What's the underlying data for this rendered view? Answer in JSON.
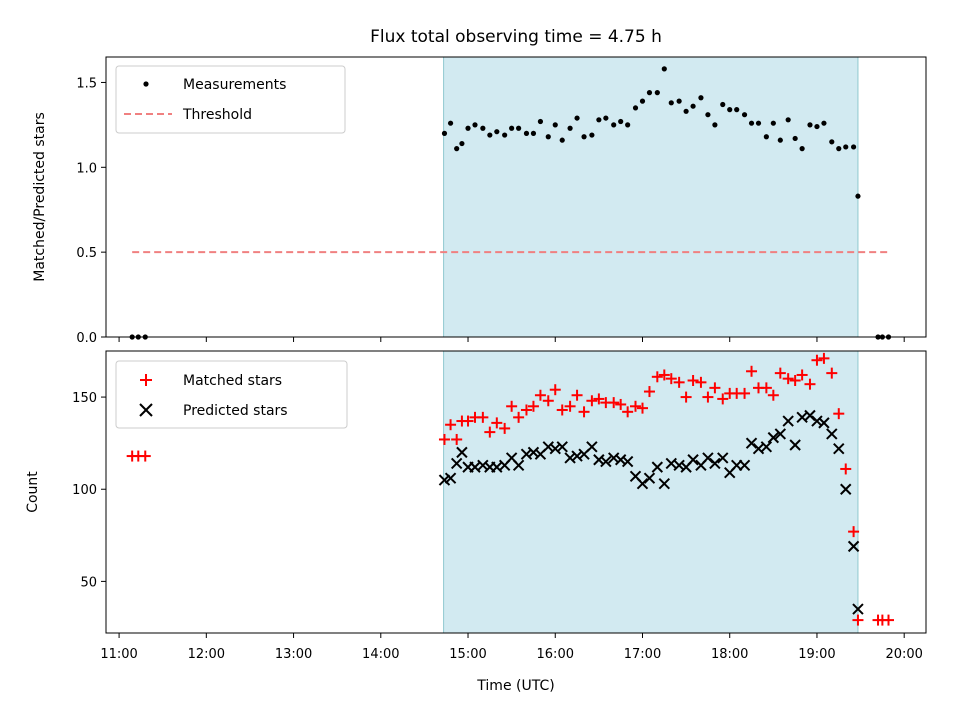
{
  "chart_data": {
    "title": "Flux total observing time = 4.75 h",
    "type": "scatter",
    "xlabel": "Time (UTC)",
    "x_ticks": [
      "11:00",
      "12:00",
      "13:00",
      "14:00",
      "15:00",
      "16:00",
      "17:00",
      "18:00",
      "19:00",
      "20:00"
    ],
    "x_range_hours": [
      10.85,
      20.25
    ],
    "observing_window_hours": [
      14.72,
      19.47
    ],
    "colors": {
      "window": "#add8e6",
      "measurements": "#000000",
      "threshold": "#f08080",
      "matched": "#ff0000",
      "predicted": "#000000"
    },
    "panels": [
      {
        "ylabel": "Matched/Predicted stars",
        "ylim": [
          0,
          1.65
        ],
        "y_ticks": [
          "0.0",
          "0.5",
          "1.0",
          "1.5"
        ],
        "legend_position": "top-left",
        "series": [
          {
            "name": "Measurements",
            "marker": "dot",
            "x": [
              11.15,
              11.22,
              11.3,
              14.73,
              14.8,
              14.87,
              14.93,
              15.0,
              15.08,
              15.17,
              15.25,
              15.33,
              15.42,
              15.5,
              15.58,
              15.67,
              15.75,
              15.83,
              15.92,
              16.0,
              16.08,
              16.17,
              16.25,
              16.33,
              16.42,
              16.5,
              16.58,
              16.67,
              16.75,
              16.83,
              16.92,
              17.0,
              17.08,
              17.17,
              17.25,
              17.33,
              17.42,
              17.5,
              17.58,
              17.67,
              17.75,
              17.83,
              17.92,
              18.0,
              18.08,
              18.17,
              18.25,
              18.33,
              18.42,
              18.5,
              18.58,
              18.67,
              18.75,
              18.83,
              18.92,
              19.0,
              19.08,
              19.17,
              19.25,
              19.33,
              19.42,
              19.47,
              19.7,
              19.75,
              19.82
            ],
            "y": [
              0,
              0,
              0,
              1.2,
              1.26,
              1.11,
              1.14,
              1.23,
              1.25,
              1.23,
              1.19,
              1.21,
              1.19,
              1.23,
              1.23,
              1.2,
              1.2,
              1.27,
              1.18,
              1.25,
              1.16,
              1.23,
              1.29,
              1.18,
              1.19,
              1.28,
              1.29,
              1.25,
              1.27,
              1.25,
              1.35,
              1.39,
              1.44,
              1.44,
              1.58,
              1.38,
              1.39,
              1.33,
              1.36,
              1.41,
              1.31,
              1.25,
              1.37,
              1.34,
              1.34,
              1.31,
              1.26,
              1.26,
              1.18,
              1.26,
              1.16,
              1.28,
              1.17,
              1.11,
              1.25,
              1.24,
              1.26,
              1.15,
              1.11,
              1.12,
              1.12,
              0.83,
              0,
              0,
              0
            ]
          },
          {
            "name": "Threshold",
            "marker": "dashed-line",
            "x": [
              11.15,
              19.82
            ],
            "y": [
              0.5,
              0.5
            ]
          }
        ]
      },
      {
        "ylabel": "Count",
        "ylim": [
          22,
          175
        ],
        "y_ticks": [
          "50",
          "100",
          "150"
        ],
        "legend_position": "top-left",
        "series": [
          {
            "name": "Matched stars",
            "marker": "plus",
            "x": [
              11.15,
              11.22,
              11.3,
              14.73,
              14.8,
              14.87,
              14.93,
              15.0,
              15.08,
              15.17,
              15.25,
              15.33,
              15.42,
              15.5,
              15.58,
              15.67,
              15.75,
              15.83,
              15.92,
              16.0,
              16.08,
              16.17,
              16.25,
              16.33,
              16.42,
              16.5,
              16.58,
              16.67,
              16.75,
              16.83,
              16.92,
              17.0,
              17.08,
              17.17,
              17.25,
              17.33,
              17.42,
              17.5,
              17.58,
              17.67,
              17.75,
              17.83,
              17.92,
              18.0,
              18.08,
              18.17,
              18.25,
              18.33,
              18.42,
              18.5,
              18.58,
              18.67,
              18.75,
              18.83,
              18.92,
              19.0,
              19.08,
              19.17,
              19.25,
              19.33,
              19.42,
              19.47,
              19.7,
              19.75,
              19.82
            ],
            "y": [
              118,
              118,
              118,
              127,
              135,
              127,
              137,
              137,
              139,
              139,
              131,
              136,
              133,
              145,
              139,
              143,
              145,
              151,
              148,
              154,
              143,
              145,
              151,
              142,
              148,
              149,
              147,
              147,
              146,
              142,
              145,
              144,
              153,
              161,
              162,
              160,
              158,
              150,
              159,
              158,
              150,
              155,
              149,
              152,
              152,
              152,
              164,
              155,
              155,
              151,
              163,
              160,
              159,
              162,
              157,
              170,
              171,
              163,
              141,
              111,
              77,
              29,
              29,
              29,
              29
            ]
          },
          {
            "name": "Predicted stars",
            "marker": "x",
            "x": [
              14.73,
              14.8,
              14.87,
              14.93,
              15.0,
              15.08,
              15.17,
              15.25,
              15.33,
              15.42,
              15.5,
              15.58,
              15.67,
              15.75,
              15.83,
              15.92,
              16.0,
              16.08,
              16.17,
              16.25,
              16.33,
              16.42,
              16.5,
              16.58,
              16.67,
              16.75,
              16.83,
              16.92,
              17.0,
              17.08,
              17.17,
              17.25,
              17.33,
              17.42,
              17.5,
              17.58,
              17.67,
              17.75,
              17.83,
              17.92,
              18.0,
              18.08,
              18.17,
              18.25,
              18.33,
              18.42,
              18.5,
              18.58,
              18.67,
              18.75,
              18.83,
              18.92,
              19.0,
              19.08,
              19.17,
              19.25,
              19.33,
              19.42,
              19.47
            ],
            "y": [
              105,
              106,
              114,
              120,
              112,
              112,
              113,
              112,
              112,
              113,
              117,
              113,
              119,
              120,
              119,
              123,
              122,
              123,
              117,
              118,
              119,
              123,
              116,
              115,
              117,
              116,
              115,
              107,
              103,
              106,
              112,
              103,
              114,
              113,
              112,
              116,
              113,
              117,
              114,
              117,
              109,
              113,
              113,
              125,
              122,
              123,
              128,
              130,
              137,
              124,
              139,
              140,
              137,
              136,
              130,
              122,
              100,
              69,
              35
            ]
          }
        ]
      }
    ]
  }
}
